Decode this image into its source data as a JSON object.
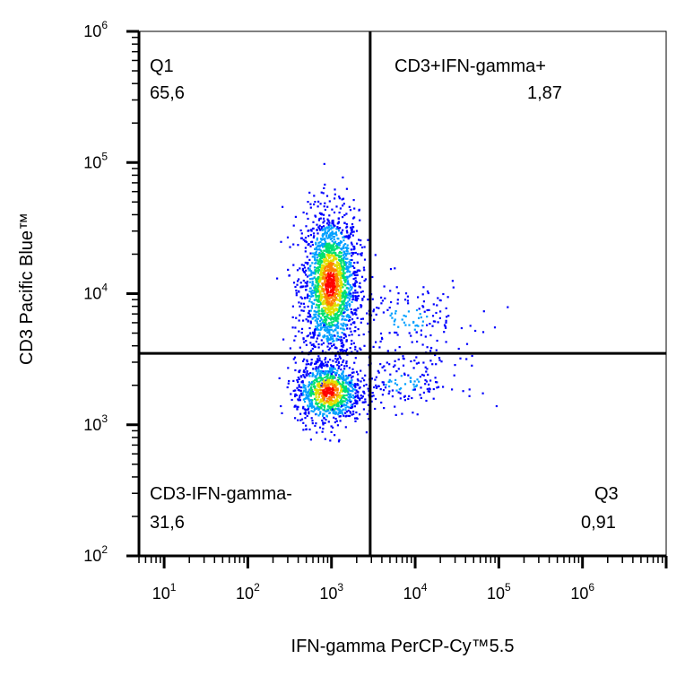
{
  "chart_data": {
    "type": "scatter",
    "style": "pseudocolor density dot plot with quadrant gates",
    "xlabel": "IFN-gamma PerCP-Cy™5.5",
    "ylabel": "CD3 Pacific Blue™",
    "xscale": "log",
    "yscale": "log",
    "xlim": [
      5,
      10000000
    ],
    "ylim": [
      100,
      1000000
    ],
    "x_ticks": [
      {
        "base": "10",
        "exp": "1",
        "value": 10
      },
      {
        "base": "10",
        "exp": "2",
        "value": 100
      },
      {
        "base": "10",
        "exp": "3",
        "value": 1000
      },
      {
        "base": "10",
        "exp": "4",
        "value": 10000
      },
      {
        "base": "10",
        "exp": "5",
        "value": 100000
      },
      {
        "base": "10",
        "exp": "6",
        "value": 1000000
      }
    ],
    "y_ticks": [
      {
        "base": "10",
        "exp": "2",
        "value": 100
      },
      {
        "base": "10",
        "exp": "3",
        "value": 1000
      },
      {
        "base": "10",
        "exp": "4",
        "value": 10000
      },
      {
        "base": "10",
        "exp": "5",
        "value": 100000
      },
      {
        "base": "10",
        "exp": "6",
        "value": 1000000
      }
    ],
    "gate": {
      "x": 2900,
      "y": 3500
    },
    "quadrants": [
      {
        "name": "Q1",
        "value": "65,6",
        "position": "top-left"
      },
      {
        "name": "CD3+IFN-gamma+",
        "value": "1,87",
        "position": "top-right"
      },
      {
        "name": "CD3-IFN-gamma-",
        "value": "31,6",
        "position": "bottom-left"
      },
      {
        "name": "Q3",
        "value": "0,91",
        "position": "bottom-right"
      }
    ],
    "populations": [
      {
        "center_x": 950,
        "center_y": 12000,
        "spread_x": 0.17,
        "spread_y": 0.28,
        "weight": 0.6
      },
      {
        "center_x": 900,
        "center_y": 1800,
        "spread_x": 0.2,
        "spread_y": 0.12,
        "weight": 0.3
      },
      {
        "center_x": 8000,
        "center_y": 6500,
        "spread_x": 0.4,
        "spread_y": 0.15,
        "weight": 0.05
      },
      {
        "center_x": 7000,
        "center_y": 2100,
        "spread_x": 0.35,
        "spread_y": 0.1,
        "weight": 0.05
      }
    ],
    "color_scale": [
      "#0000ff",
      "#00a0ff",
      "#00e070",
      "#e0e000",
      "#ff8000",
      "#ff0000"
    ],
    "grid": false
  }
}
